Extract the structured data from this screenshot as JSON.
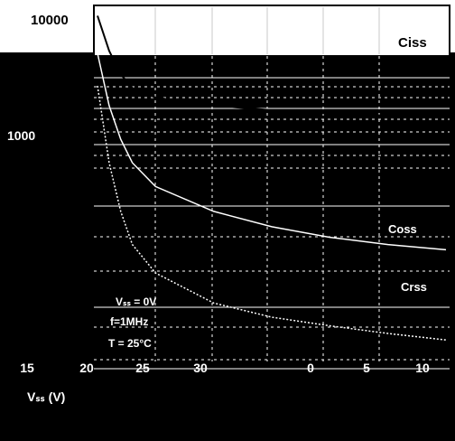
{
  "chart_data": {
    "type": "line",
    "title": "",
    "xlabel": "Vₛₛ (V)",
    "ylabel": "",
    "y_scale": "log",
    "y_top_tick": "10000",
    "y_mid_tick": "1000",
    "x_tick_labels": [
      "15",
      "20",
      "25",
      "30",
      "0",
      "5",
      "10"
    ],
    "conditions": [
      "Vₛₛ = 0V",
      "f=1MHz",
      "T = 25°C"
    ],
    "series": [
      {
        "name": "Ciss",
        "color": "#000000",
        "x": [
          0,
          1,
          2,
          3,
          5,
          10,
          15,
          20,
          25,
          30
        ],
        "y": [
          9000,
          5200,
          3600,
          2900,
          2500,
          2200,
          2050,
          1950,
          1880,
          1820
        ]
      },
      {
        "name": "Coss",
        "color": "#ffffff",
        "x": [
          0,
          1,
          2,
          3,
          5,
          10,
          15,
          20,
          25,
          30
        ],
        "y": [
          5000,
          2200,
          1300,
          900,
          620,
          420,
          330,
          280,
          250,
          230
        ]
      },
      {
        "name": "Crss",
        "color": "#ffffff",
        "x": [
          0,
          1,
          2,
          3,
          5,
          10,
          15,
          20,
          25,
          30
        ],
        "y": [
          3000,
          900,
          420,
          250,
          160,
          100,
          80,
          70,
          62,
          56
        ]
      }
    ],
    "grid": true,
    "legend": "inline"
  }
}
